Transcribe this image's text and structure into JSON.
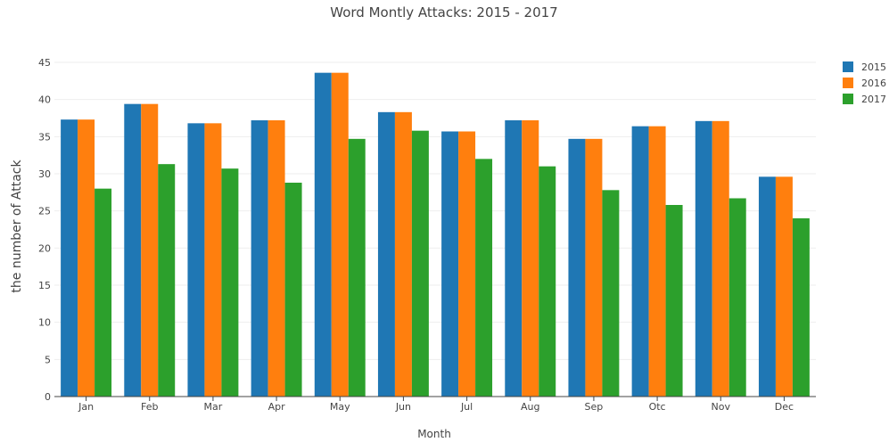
{
  "chart_data": {
    "type": "bar",
    "title": "Word Montly Attacks: 2015 - 2017",
    "xlabel": "Month",
    "ylabel": "the number of Attack",
    "categories": [
      "Jan",
      "Feb",
      "Mar",
      "Apr",
      "May",
      "Jun",
      "Jul",
      "Aug",
      "Sep",
      "Otc",
      "Nov",
      "Dec"
    ],
    "ylim": [
      0,
      45
    ],
    "yticks": [
      0,
      5,
      10,
      15,
      20,
      25,
      30,
      35,
      40,
      45
    ],
    "grid": true,
    "legend_position": "top-right",
    "series": [
      {
        "name": "2015",
        "color": "#1f77b4",
        "values": [
          37.3,
          39.4,
          36.8,
          37.2,
          43.6,
          38.3,
          35.7,
          37.2,
          34.7,
          36.4,
          37.1,
          29.6
        ]
      },
      {
        "name": "2016",
        "color": "#ff7f0e",
        "values": [
          37.3,
          39.4,
          36.8,
          37.2,
          43.6,
          38.3,
          35.7,
          37.2,
          34.7,
          36.4,
          37.1,
          29.6
        ]
      },
      {
        "name": "2017",
        "color": "#2ca02c",
        "values": [
          28.0,
          31.3,
          30.7,
          28.8,
          34.7,
          35.8,
          32.0,
          31.0,
          27.8,
          25.8,
          26.7,
          24.0
        ]
      }
    ]
  }
}
